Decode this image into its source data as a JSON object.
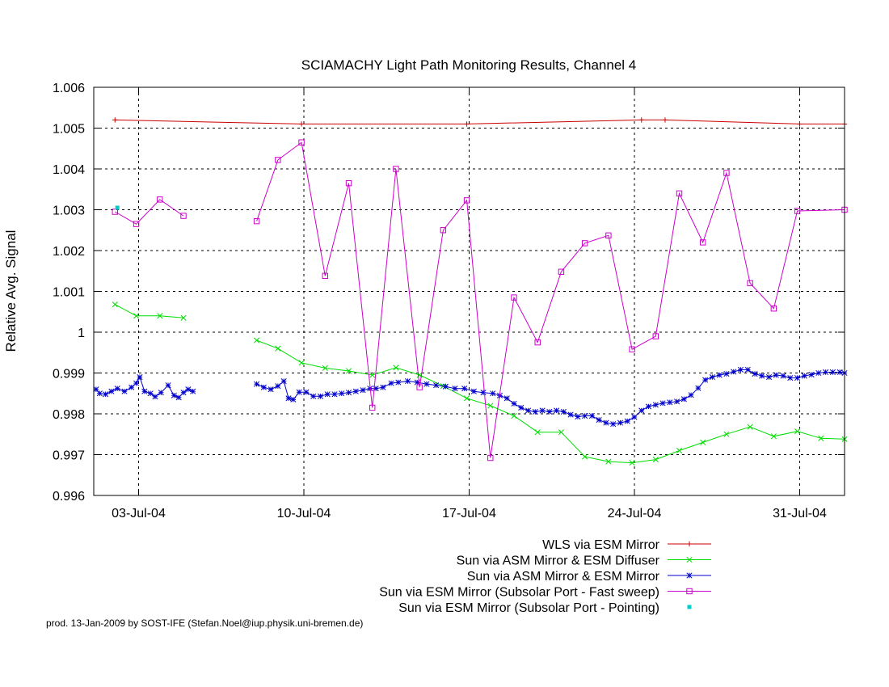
{
  "chart_data": {
    "type": "line",
    "title": "SCIAMACHY Light Path Monitoring Results, Channel 4",
    "xlabel": "",
    "ylabel": "Relative Avg. Signal",
    "xlim": [
      1.1,
      32.9
    ],
    "ylim": [
      0.996,
      1.006
    ],
    "x_unit": "day of July 2004",
    "x_ticks": [
      {
        "value": 3,
        "label": "03-Jul-04"
      },
      {
        "value": 10,
        "label": "10-Jul-04"
      },
      {
        "value": 17,
        "label": "17-Jul-04"
      },
      {
        "value": 24,
        "label": "24-Jul-04"
      },
      {
        "value": 31,
        "label": "31-Jul-04"
      }
    ],
    "y_ticks": [
      {
        "value": 0.996,
        "label": "0.996"
      },
      {
        "value": 0.997,
        "label": "0.997"
      },
      {
        "value": 0.998,
        "label": "0.998"
      },
      {
        "value": 0.999,
        "label": "0.999"
      },
      {
        "value": 1.0,
        "label": "1"
      },
      {
        "value": 1.001,
        "label": "1.001"
      },
      {
        "value": 1.002,
        "label": "1.002"
      },
      {
        "value": 1.003,
        "label": "1.003"
      },
      {
        "value": 1.004,
        "label": "1.004"
      },
      {
        "value": 1.005,
        "label": "1.005"
      },
      {
        "value": 1.006,
        "label": "1.006"
      }
    ],
    "grid": true,
    "legend_position": "bottom-right",
    "footer": "prod. 13-Jan-2009 by SOST-IFE (Stefan.Noel@iup.physik.uni-bremen.de)",
    "series": [
      {
        "name": "WLS via ESM Mirror",
        "color": "#cc0000",
        "marker": "plus",
        "segments": [
          [
            [
              2.0,
              1.0052
            ],
            [
              9.9,
              1.0051
            ],
            [
              16.9,
              1.0051
            ],
            [
              24.3,
              1.0052
            ],
            [
              25.3,
              1.0052
            ],
            [
              31.0,
              1.0051
            ],
            [
              32.9,
              1.0051
            ]
          ]
        ]
      },
      {
        "name": "Sun via ASM Mirror & ESM Diffuser",
        "color": "#00dd00",
        "marker": "cross",
        "segments": [
          [
            [
              2.0,
              1.00068
            ],
            [
              2.9,
              1.0004
            ],
            [
              3.9,
              1.0004
            ],
            [
              4.9,
              1.00035
            ]
          ],
          [
            [
              8.0,
              0.9998
            ],
            [
              8.9,
              0.9996
            ],
            [
              9.9,
              0.99925
            ],
            [
              10.9,
              0.99912
            ],
            [
              11.9,
              0.99905
            ],
            [
              12.9,
              0.99895
            ],
            [
              13.9,
              0.99913
            ],
            [
              14.9,
              0.99895
            ],
            [
              15.9,
              0.99868
            ],
            [
              16.9,
              0.99838
            ],
            [
              17.9,
              0.9982
            ],
            [
              18.9,
              0.99795
            ],
            [
              19.9,
              0.99755
            ],
            [
              20.9,
              0.99755
            ],
            [
              21.9,
              0.99695
            ],
            [
              22.9,
              0.99683
            ],
            [
              23.9,
              0.9968
            ],
            [
              24.9,
              0.99688
            ],
            [
              25.9,
              0.9971
            ],
            [
              26.9,
              0.9973
            ],
            [
              27.9,
              0.9975
            ],
            [
              28.9,
              0.99768
            ],
            [
              29.9,
              0.99745
            ],
            [
              30.9,
              0.99757
            ],
            [
              31.9,
              0.9974
            ],
            [
              32.9,
              0.99738
            ]
          ]
        ]
      },
      {
        "name": "Sun via ASM Mirror & ESM Mirror",
        "color": "#0000cc",
        "marker": "star",
        "segments": [
          [
            [
              1.2,
              0.9986
            ],
            [
              1.35,
              0.9985
            ],
            [
              1.6,
              0.99848
            ],
            [
              1.85,
              0.99855
            ],
            [
              2.1,
              0.99862
            ],
            [
              2.4,
              0.99855
            ],
            [
              2.7,
              0.99865
            ],
            [
              2.9,
              0.99875
            ],
            [
              3.05,
              0.9989
            ],
            [
              3.25,
              0.99855
            ],
            [
              3.5,
              0.9985
            ],
            [
              3.7,
              0.99842
            ],
            [
              3.95,
              0.99852
            ],
            [
              4.25,
              0.9987
            ],
            [
              4.5,
              0.99845
            ],
            [
              4.7,
              0.9984
            ],
            [
              4.9,
              0.99852
            ],
            [
              5.1,
              0.9986
            ],
            [
              5.3,
              0.99855
            ]
          ],
          [
            [
              8.0,
              0.99873
            ],
            [
              8.3,
              0.99865
            ],
            [
              8.6,
              0.9986
            ],
            [
              8.9,
              0.99868
            ],
            [
              9.15,
              0.9988
            ],
            [
              9.35,
              0.99838
            ],
            [
              9.55,
              0.99835
            ],
            [
              9.8,
              0.99853
            ],
            [
              10.1,
              0.99853
            ],
            [
              10.4,
              0.99843
            ],
            [
              10.7,
              0.99843
            ],
            [
              11.0,
              0.99848
            ],
            [
              11.3,
              0.99848
            ],
            [
              11.6,
              0.9985
            ],
            [
              11.9,
              0.99852
            ],
            [
              12.2,
              0.99855
            ],
            [
              12.5,
              0.99858
            ],
            [
              12.8,
              0.99862
            ],
            [
              13.05,
              0.99862
            ],
            [
              13.35,
              0.99865
            ],
            [
              13.7,
              0.99875
            ],
            [
              14.0,
              0.99877
            ],
            [
              14.4,
              0.9988
            ],
            [
              14.8,
              0.99877
            ],
            [
              15.2,
              0.99873
            ],
            [
              15.6,
              0.9987
            ],
            [
              16.0,
              0.99867
            ],
            [
              16.4,
              0.99862
            ],
            [
              16.8,
              0.99862
            ],
            [
              17.2,
              0.99855
            ],
            [
              17.6,
              0.99852
            ],
            [
              18.0,
              0.9985
            ],
            [
              18.3,
              0.99845
            ],
            [
              18.6,
              0.99838
            ],
            [
              18.9,
              0.99825
            ],
            [
              19.2,
              0.99815
            ],
            [
              19.5,
              0.99808
            ],
            [
              19.8,
              0.99805
            ],
            [
              20.1,
              0.99808
            ],
            [
              20.4,
              0.99805
            ],
            [
              20.7,
              0.99808
            ],
            [
              21.0,
              0.99805
            ],
            [
              21.3,
              0.99798
            ],
            [
              21.6,
              0.99793
            ],
            [
              21.9,
              0.99795
            ],
            [
              22.2,
              0.99795
            ],
            [
              22.5,
              0.99785
            ],
            [
              22.8,
              0.99778
            ],
            [
              23.1,
              0.99775
            ],
            [
              23.4,
              0.99778
            ],
            [
              23.7,
              0.99782
            ],
            [
              24.0,
              0.99792
            ],
            [
              24.3,
              0.99808
            ],
            [
              24.6,
              0.99818
            ],
            [
              24.9,
              0.99822
            ],
            [
              25.2,
              0.99826
            ],
            [
              25.5,
              0.99828
            ],
            [
              25.8,
              0.9983
            ],
            [
              26.1,
              0.99836
            ],
            [
              26.4,
              0.99846
            ],
            [
              26.7,
              0.99863
            ],
            [
              27.0,
              0.99883
            ],
            [
              27.3,
              0.9989
            ],
            [
              27.6,
              0.99895
            ],
            [
              27.9,
              0.99898
            ],
            [
              28.2,
              0.99903
            ],
            [
              28.5,
              0.99908
            ],
            [
              28.8,
              0.99908
            ],
            [
              29.1,
              0.99898
            ],
            [
              29.4,
              0.99893
            ],
            [
              29.7,
              0.9989
            ],
            [
              30.0,
              0.99895
            ],
            [
              30.3,
              0.99893
            ],
            [
              30.6,
              0.99888
            ],
            [
              30.9,
              0.99888
            ],
            [
              31.2,
              0.99893
            ],
            [
              31.5,
              0.99896
            ],
            [
              31.8,
              0.999
            ],
            [
              32.1,
              0.99902
            ],
            [
              32.4,
              0.99902
            ],
            [
              32.7,
              0.99902
            ],
            [
              32.9,
              0.999
            ]
          ]
        ]
      },
      {
        "name": "Sun via ESM Mirror (Subsolar Port - Fast sweep)",
        "color": "#cc00cc",
        "marker": "square",
        "segments": [
          [
            [
              2.0,
              1.00295
            ],
            [
              2.9,
              1.00265
            ],
            [
              3.9,
              1.00325
            ],
            [
              4.9,
              1.00285
            ]
          ],
          [
            [
              8.0,
              1.00272
            ],
            [
              8.9,
              1.00422
            ],
            [
              9.9,
              1.00465
            ],
            [
              10.9,
              1.00138
            ],
            [
              11.9,
              1.00365
            ],
            [
              12.9,
              0.99815
            ],
            [
              13.9,
              1.004
            ],
            [
              14.9,
              0.99865
            ],
            [
              15.9,
              1.0025
            ],
            [
              16.9,
              1.00323
            ],
            [
              17.9,
              0.99692
            ],
            [
              18.9,
              1.00085
            ],
            [
              19.9,
              0.99975
            ],
            [
              20.9,
              1.00148
            ],
            [
              21.9,
              1.00218
            ],
            [
              22.9,
              1.00237
            ],
            [
              23.9,
              0.99958
            ],
            [
              24.9,
              0.9999
            ],
            [
              25.9,
              1.0034
            ],
            [
              26.9,
              1.0022
            ],
            [
              27.9,
              1.0039
            ],
            [
              28.9,
              1.0012
            ],
            [
              29.9,
              1.00058
            ],
            [
              30.9,
              1.00297
            ],
            [
              32.9,
              1.003
            ]
          ]
        ]
      },
      {
        "name": "Sun via ESM Mirror (Subsolar Port - Pointing)",
        "color": "#00cccc",
        "marker": "dot",
        "segments": [
          [
            [
              2.1,
              1.00305
            ]
          ]
        ]
      }
    ]
  }
}
